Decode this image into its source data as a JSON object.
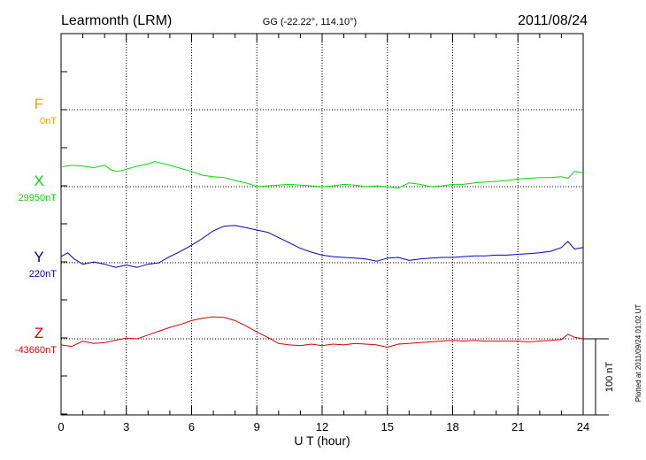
{
  "header": {
    "station": "Learmonth (LRM)",
    "coords": "GG (-22.22°, 114.10°)",
    "date": "2011/08/24"
  },
  "plotted_note": "Plotted at 2011/09/24 01:02 UT",
  "scale_bar_label": "100 nT",
  "chart_data": {
    "type": "line",
    "xlabel": "U T (hour)",
    "xlim": [
      0,
      24
    ],
    "x_ticks": [
      0,
      3,
      6,
      9,
      12,
      15,
      18,
      21,
      24
    ],
    "y_units": "nT",
    "scale_bar_nT": 100,
    "series": [
      {
        "name": "F",
        "baseline_label": "0nT",
        "color": "#f0a000",
        "x": [],
        "values": []
      },
      {
        "name": "X",
        "baseline_label": "29950nT",
        "color": "#00dd00",
        "x": [
          0,
          0.5,
          1,
          1.5,
          2,
          2.3,
          2.6,
          3,
          3.5,
          4,
          4.3,
          4.6,
          5,
          5.5,
          6,
          6.5,
          7,
          7.5,
          8,
          8.5,
          9,
          9.5,
          10,
          10.5,
          11,
          11.5,
          12,
          12.5,
          13,
          13.5,
          14,
          14.5,
          15,
          15.5,
          16,
          16.5,
          17,
          17.5,
          18,
          18.5,
          19,
          19.5,
          20,
          20.5,
          21,
          21.5,
          22,
          22.5,
          23,
          23.3,
          23.6,
          24
        ],
        "values": [
          29976,
          29978,
          29977,
          29975,
          29978,
          29972,
          29970,
          29973,
          29977,
          29980,
          29983,
          29981,
          29978,
          29974,
          29970,
          29965,
          29963,
          29962,
          29958,
          29955,
          29950,
          29951,
          29952,
          29953,
          29952,
          29951,
          29950,
          29951,
          29953,
          29952,
          29950,
          29951,
          29950,
          29948,
          29955,
          29953,
          29950,
          29951,
          29953,
          29953,
          29955,
          29956,
          29957,
          29958,
          29960,
          29961,
          29962,
          29962,
          29963,
          29961,
          29970,
          29968
        ]
      },
      {
        "name": "Y",
        "baseline_label": "220nT",
        "color": "#0000cc",
        "x": [
          0,
          0.3,
          0.6,
          1,
          1.5,
          2,
          2.5,
          3,
          3.5,
          4,
          4.5,
          5,
          5.5,
          6,
          6.5,
          7,
          7.5,
          8,
          8.5,
          9,
          9.5,
          10,
          10.5,
          11,
          11.5,
          12,
          12.5,
          13,
          13.5,
          14,
          14.5,
          15,
          15.5,
          16,
          16.5,
          17,
          17.5,
          18,
          18.5,
          19,
          19.5,
          20,
          20.5,
          21,
          21.5,
          22,
          22.5,
          23,
          23.3,
          23.6,
          24
        ],
        "values": [
          228,
          233,
          225,
          218,
          221,
          218,
          214,
          217,
          214,
          218,
          220,
          228,
          235,
          243,
          252,
          262,
          268,
          269,
          266,
          263,
          260,
          253,
          246,
          239,
          234,
          230,
          228,
          227,
          226,
          225,
          222,
          226,
          227,
          223,
          225,
          226,
          227,
          227,
          228,
          229,
          229,
          230,
          230,
          231,
          232,
          233,
          235,
          240,
          248,
          238,
          240
        ]
      },
      {
        "name": "Z",
        "baseline_label": "-43660nT",
        "color": "#dd0000",
        "x": [
          0,
          0.5,
          1,
          1.5,
          2,
          2.5,
          3,
          3.5,
          4,
          4.5,
          5,
          5.5,
          6,
          6.5,
          7,
          7.5,
          8,
          8.5,
          9,
          9.5,
          10,
          10.5,
          11,
          11.5,
          12,
          12.5,
          13,
          13.5,
          14,
          14.5,
          15,
          15.5,
          16,
          16.5,
          17,
          17.5,
          18,
          18.5,
          19,
          19.5,
          20,
          20.5,
          21,
          21.5,
          22,
          22.5,
          23,
          23.3,
          23.6,
          24
        ],
        "values": [
          -43668,
          -43670,
          -43663,
          -43666,
          -43665,
          -43662,
          -43659,
          -43660,
          -43655,
          -43650,
          -43645,
          -43641,
          -43636,
          -43633,
          -43631,
          -43632,
          -43636,
          -43643,
          -43651,
          -43658,
          -43666,
          -43668,
          -43669,
          -43667,
          -43669,
          -43667,
          -43668,
          -43666,
          -43667,
          -43668,
          -43671,
          -43667,
          -43666,
          -43665,
          -43664,
          -43663,
          -43662,
          -43663,
          -43662,
          -43663,
          -43663,
          -43663,
          -43663,
          -43664,
          -43663,
          -43662,
          -43661,
          -43654,
          -43658,
          -43660
        ]
      }
    ]
  }
}
